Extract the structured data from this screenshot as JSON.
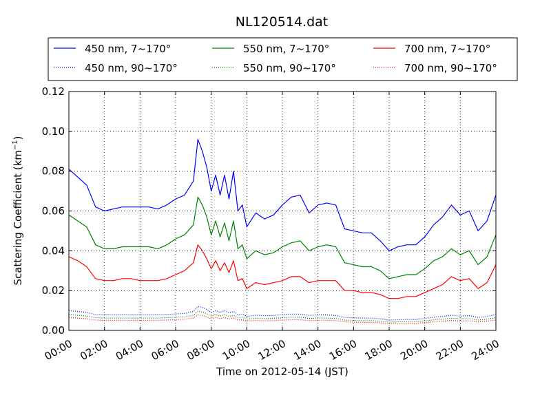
{
  "chart_data": {
    "type": "line",
    "title": "NL120514.dat",
    "xlabel": "Time on 2012-05-14 (JST)",
    "ylabel_main": "Scattering Coefficient (km",
    "ylabel_sup": "−1",
    "ylabel_end": ")",
    "xlim": [
      0,
      24
    ],
    "ylim": [
      0,
      0.12
    ],
    "x_tick_values": [
      0,
      2,
      4,
      6,
      8,
      10,
      12,
      14,
      16,
      18,
      20,
      22,
      24
    ],
    "x_tick_labels": [
      "00:00",
      "02:00",
      "04:00",
      "06:00",
      "08:00",
      "10:00",
      "12:00",
      "14:00",
      "16:00",
      "18:00",
      "20:00",
      "22:00",
      "24:00"
    ],
    "y_tick_values": [
      0,
      0.02,
      0.04,
      0.06,
      0.08,
      0.1,
      0.12
    ],
    "y_tick_labels": [
      "0.00",
      "0.02",
      "0.04",
      "0.06",
      "0.08",
      "0.10",
      "0.12"
    ],
    "grid": true,
    "legend_position": "top",
    "x": [
      0,
      0.5,
      1,
      1.5,
      2,
      2.5,
      3,
      3.5,
      4,
      4.5,
      5,
      5.5,
      6,
      6.5,
      7,
      7.25,
      7.5,
      7.75,
      8,
      8.25,
      8.5,
      8.75,
      9,
      9.25,
      9.5,
      9.75,
      10,
      10.5,
      11,
      11.5,
      12,
      12.5,
      13,
      13.5,
      14,
      14.5,
      15,
      15.5,
      16,
      16.5,
      17,
      17.5,
      18,
      18.5,
      19,
      19.5,
      20,
      20.5,
      21,
      21.5,
      22,
      22.5,
      23,
      23.5,
      24
    ],
    "series": [
      {
        "name": "450 nm, 7∼170°",
        "color": "#0000ff",
        "dash": "solid",
        "values": [
          0.081,
          0.077,
          0.073,
          0.062,
          0.06,
          0.061,
          0.062,
          0.062,
          0.062,
          0.062,
          0.061,
          0.063,
          0.066,
          0.068,
          0.075,
          0.096,
          0.09,
          0.082,
          0.07,
          0.078,
          0.068,
          0.078,
          0.066,
          0.08,
          0.06,
          0.063,
          0.052,
          0.059,
          0.056,
          0.058,
          0.063,
          0.067,
          0.068,
          0.059,
          0.063,
          0.064,
          0.063,
          0.051,
          0.05,
          0.049,
          0.049,
          0.045,
          0.04,
          0.042,
          0.043,
          0.043,
          0.047,
          0.053,
          0.057,
          0.063,
          0.058,
          0.06,
          0.05,
          0.055,
          0.068
        ]
      },
      {
        "name": "450 nm, 90∼170°",
        "color": "#0000ff",
        "dash": "dotted",
        "values": [
          0.01,
          0.0095,
          0.009,
          0.008,
          0.0078,
          0.0078,
          0.0078,
          0.0078,
          0.0078,
          0.0078,
          0.0078,
          0.008,
          0.0083,
          0.0085,
          0.0095,
          0.012,
          0.0115,
          0.0105,
          0.009,
          0.01,
          0.009,
          0.01,
          0.0088,
          0.0095,
          0.008,
          0.0082,
          0.007,
          0.0076,
          0.0074,
          0.0075,
          0.008,
          0.0082,
          0.0082,
          0.0075,
          0.0078,
          0.0078,
          0.0075,
          0.0065,
          0.0063,
          0.0062,
          0.0062,
          0.0058,
          0.0052,
          0.0054,
          0.0055,
          0.0055,
          0.006,
          0.0066,
          0.007,
          0.0076,
          0.0072,
          0.0074,
          0.0065,
          0.007,
          0.008
        ]
      },
      {
        "name": "550 nm, 7∼170°",
        "color": "#008000",
        "dash": "solid",
        "values": [
          0.058,
          0.055,
          0.052,
          0.043,
          0.041,
          0.041,
          0.042,
          0.042,
          0.042,
          0.042,
          0.041,
          0.043,
          0.046,
          0.048,
          0.053,
          0.067,
          0.063,
          0.057,
          0.048,
          0.055,
          0.047,
          0.054,
          0.045,
          0.055,
          0.041,
          0.043,
          0.036,
          0.04,
          0.038,
          0.039,
          0.042,
          0.044,
          0.045,
          0.04,
          0.042,
          0.043,
          0.042,
          0.034,
          0.033,
          0.032,
          0.032,
          0.03,
          0.026,
          0.027,
          0.028,
          0.028,
          0.031,
          0.035,
          0.037,
          0.041,
          0.038,
          0.04,
          0.033,
          0.037,
          0.048
        ]
      },
      {
        "name": "550 nm, 90∼170°",
        "color": "#008000",
        "dash": "dotted",
        "values": [
          0.008,
          0.0076,
          0.0072,
          0.0064,
          0.0062,
          0.0062,
          0.0062,
          0.0062,
          0.0062,
          0.0062,
          0.0062,
          0.0064,
          0.0066,
          0.0068,
          0.0076,
          0.0096,
          0.0092,
          0.0084,
          0.0072,
          0.008,
          0.0072,
          0.008,
          0.007,
          0.0076,
          0.0064,
          0.0066,
          0.0056,
          0.0061,
          0.0059,
          0.006,
          0.0064,
          0.0066,
          0.0066,
          0.006,
          0.0062,
          0.0062,
          0.006,
          0.0052,
          0.005,
          0.0049,
          0.0049,
          0.0046,
          0.0042,
          0.0043,
          0.0044,
          0.0044,
          0.0048,
          0.0053,
          0.0056,
          0.0061,
          0.0058,
          0.0059,
          0.0052,
          0.0056,
          0.0064
        ]
      },
      {
        "name": "700 nm, 7∼170°",
        "color": "#ff0000",
        "dash": "solid",
        "values": [
          0.037,
          0.035,
          0.032,
          0.026,
          0.025,
          0.025,
          0.026,
          0.026,
          0.025,
          0.025,
          0.025,
          0.026,
          0.028,
          0.03,
          0.034,
          0.043,
          0.04,
          0.036,
          0.031,
          0.035,
          0.03,
          0.034,
          0.029,
          0.035,
          0.025,
          0.026,
          0.021,
          0.024,
          0.023,
          0.024,
          0.025,
          0.027,
          0.027,
          0.024,
          0.025,
          0.025,
          0.025,
          0.02,
          0.02,
          0.019,
          0.019,
          0.018,
          0.016,
          0.016,
          0.017,
          0.017,
          0.019,
          0.021,
          0.023,
          0.027,
          0.025,
          0.026,
          0.021,
          0.024,
          0.033
        ]
      },
      {
        "name": "700 nm, 90∼170°",
        "color": "#ff0000",
        "dash": "dotted",
        "values": [
          0.0065,
          0.0062,
          0.0058,
          0.0052,
          0.005,
          0.005,
          0.005,
          0.005,
          0.005,
          0.005,
          0.005,
          0.0052,
          0.0054,
          0.0056,
          0.0062,
          0.0078,
          0.0075,
          0.0068,
          0.0058,
          0.0065,
          0.0058,
          0.0065,
          0.0057,
          0.0062,
          0.0052,
          0.0054,
          0.0046,
          0.005,
          0.0048,
          0.0049,
          0.0052,
          0.0054,
          0.0054,
          0.0049,
          0.0051,
          0.0051,
          0.0049,
          0.0043,
          0.0041,
          0.004,
          0.004,
          0.0038,
          0.0034,
          0.0035,
          0.0036,
          0.0036,
          0.0039,
          0.0043,
          0.0046,
          0.005,
          0.0047,
          0.0048,
          0.0043,
          0.0046,
          0.0052
        ]
      }
    ]
  }
}
